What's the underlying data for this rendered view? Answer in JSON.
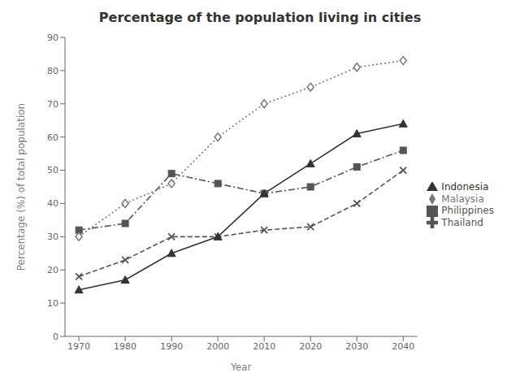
{
  "chart_data": {
    "type": "line",
    "title": "Percentage of the population living in cities",
    "xlabel": "Year",
    "ylabel": "Percentage (%) of total population",
    "x": [
      1970,
      1980,
      1990,
      2000,
      2010,
      2020,
      2030,
      2040
    ],
    "series": [
      {
        "name": "Philippines",
        "color": "#555555",
        "marker": "square",
        "line_style": "dashdot",
        "values": [
          32,
          34,
          49,
          46,
          43,
          45,
          51,
          56
        ]
      },
      {
        "name": "Malaysia",
        "color": "#777777",
        "marker": "diamond",
        "line_style": "dotted",
        "values": [
          30,
          40,
          46,
          60,
          70,
          75,
          81,
          83
        ]
      },
      {
        "name": "Thailand",
        "color": "#555555",
        "marker": "x",
        "line_style": "dashed",
        "values": [
          18,
          23,
          30,
          30,
          32,
          33,
          40,
          50
        ]
      },
      {
        "name": "Indonesia",
        "color": "#333333",
        "marker": "triangle",
        "line_style": "solid",
        "values": [
          14,
          17,
          25,
          30,
          43,
          52,
          61,
          64
        ]
      }
    ],
    "xlim": [
      1967,
      2043
    ],
    "xticks": [
      1970,
      1980,
      1990,
      2000,
      2010,
      2020,
      2030,
      2040
    ],
    "ylim": [
      0,
      90
    ],
    "yticks": [
      0,
      10,
      20,
      30,
      40,
      50,
      60,
      70,
      80,
      90
    ],
    "grid": false,
    "legend": "right"
  }
}
